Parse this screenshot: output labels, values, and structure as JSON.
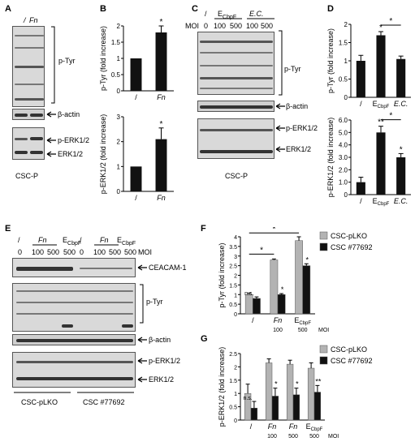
{
  "panels": {
    "A": {
      "letter": "A",
      "lanes": [
        "/",
        "Fn"
      ],
      "labels": {
        "ptyr": "p-Tyr",
        "actin": "β-actin",
        "perk": "p-ERK1/2",
        "erk": "ERK1/2"
      },
      "cell": "CSC-P"
    },
    "B": {
      "letter": "B",
      "top": {
        "ylabel": "p-Tyr (fold increase)",
        "categories": [
          "/",
          "Fn"
        ],
        "values": [
          1.0,
          1.8
        ],
        "errors": [
          0,
          0.2
        ],
        "ylim": [
          0,
          2
        ],
        "ticks": [
          "0",
          "0.5",
          "1",
          "1.5",
          "2"
        ],
        "sig": [
          "",
          "*"
        ]
      },
      "bottom": {
        "ylabel": "p-ERK1/2 (fold increase)",
        "categories": [
          "/",
          "Fn"
        ],
        "values": [
          1.0,
          2.1
        ],
        "errors": [
          0,
          0.45
        ],
        "ylim": [
          0,
          3
        ],
        "ticks": [
          "0",
          "1",
          "2",
          "3"
        ],
        "sig": [
          "",
          "*"
        ]
      }
    },
    "C": {
      "letter": "C",
      "header": {
        "g1": "E",
        "g1sub": "CbpF",
        "g2": "E.C."
      },
      "moi_label": "MOI",
      "lanes": [
        "/",
        "0",
        "100",
        "500",
        "100",
        "500"
      ],
      "labels": {
        "ptyr": "p-Tyr",
        "actin": "β-actin",
        "perk": "p-ERK1/2",
        "erk": "ERK1/2"
      },
      "cell": "CSC-P"
    },
    "D": {
      "letter": "D",
      "top": {
        "ylabel": "p-Tyr (fold increase)",
        "categories": [
          "/",
          "E",
          "E.C."
        ],
        "cat_sub": [
          "",
          "CbpF",
          ""
        ],
        "values": [
          1.0,
          1.7,
          1.05
        ],
        "errors": [
          0.15,
          0.1,
          0.08
        ],
        "ylim": [
          0,
          2
        ],
        "ticks": [
          "0",
          "0.5",
          "1",
          "1.5",
          "2"
        ],
        "sig": [
          "",
          "*",
          ""
        ],
        "bracket": "*"
      },
      "bottom": {
        "ylabel": "p-ERK1/2 (fold increase)",
        "categories": [
          "/",
          "E",
          "E.C."
        ],
        "cat_sub": [
          "",
          "CbpF",
          ""
        ],
        "values": [
          1.0,
          5.0,
          3.0
        ],
        "errors": [
          0.4,
          0.5,
          0.3
        ],
        "ylim": [
          0,
          6
        ],
        "ticks": [
          "0",
          "1.0",
          "2.0",
          "3.0",
          "4.0",
          "5.0",
          "6.0"
        ],
        "sig": [
          "",
          "**",
          "*"
        ],
        "bracket": "*"
      }
    },
    "E": {
      "letter": "E",
      "row1": [
        "/",
        "Fn",
        "E",
        "/",
        "Fn",
        "E"
      ],
      "row1sub": "CbpF",
      "row2": [
        "0",
        "100",
        "500",
        "500",
        "0",
        "100",
        "500",
        "500"
      ],
      "moi_label": "MOI",
      "labels": {
        "ceacam": "CEACAM-1",
        "ptyr": "p-Tyr",
        "actin": "β-actin",
        "perk": "p-ERK1/2",
        "erk": "ERK1/2"
      },
      "groups": [
        "CSC-pLKO",
        "CSC #77692"
      ]
    },
    "F": {
      "letter": "F",
      "ylabel": "p-Tyr (fold increase)",
      "ticks": [
        "0",
        "0.5",
        "1",
        "1.5",
        "2",
        "2.5",
        "3",
        "3.5",
        "4"
      ],
      "ylim": [
        0,
        4
      ],
      "categories": [
        "/",
        "Fn",
        "E"
      ],
      "cat_sub": [
        "",
        "",
        "CbpF"
      ],
      "moi": [
        "",
        "100",
        "500"
      ],
      "moi_label": "MOI",
      "series": [
        {
          "name": "CSC-pLKO",
          "color": "#b3b3b3",
          "values": [
            1.0,
            2.8,
            3.8
          ],
          "errors": [
            0.08,
            0.05,
            0.2
          ]
        },
        {
          "name": "CSC #77692",
          "color": "#111111",
          "values": [
            0.8,
            1.0,
            2.5
          ],
          "errors": [
            0.08,
            0.05,
            0.1
          ]
        }
      ],
      "annotations": [
        "n.s.",
        "*",
        "*"
      ],
      "brackets": [
        "*",
        "*"
      ]
    },
    "G": {
      "letter": "G",
      "ylabel": "p-ERK1/2 (fold increase)",
      "ticks": [
        "0",
        "0.5",
        "1",
        "1.5",
        "2",
        "2.5"
      ],
      "ylim": [
        0,
        2.5
      ],
      "categories": [
        "/",
        "Fn",
        "Fn",
        "E"
      ],
      "cat_sub": [
        "",
        "",
        "",
        "CbpF"
      ],
      "moi": [
        "",
        "100",
        "500",
        "500"
      ],
      "moi_label": "MOI",
      "series": [
        {
          "name": "CSC-pLKO",
          "color": "#b3b3b3",
          "values": [
            1.0,
            2.15,
            2.1,
            1.95
          ],
          "errors": [
            0.35,
            0.15,
            0.15,
            0.2
          ]
        },
        {
          "name": "CSC #77692",
          "color": "#111111",
          "values": [
            0.45,
            0.9,
            0.95,
            1.05
          ],
          "errors": [
            0.25,
            0.3,
            0.25,
            0.25
          ]
        }
      ],
      "annotations": [
        "n.s.",
        "*",
        "*",
        "**"
      ]
    }
  }
}
